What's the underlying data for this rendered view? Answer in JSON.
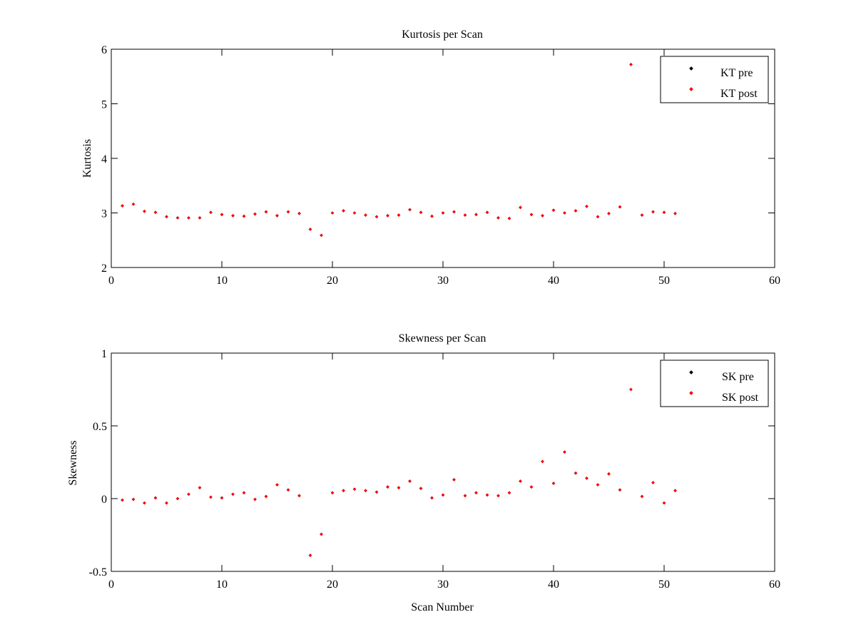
{
  "chart_data": [
    {
      "type": "scatter",
      "title": "Kurtosis per Scan",
      "xlabel": "",
      "ylabel": "Kurtosis",
      "xlim": [
        0,
        60
      ],
      "ylim": [
        2,
        6
      ],
      "xticks": [
        0,
        10,
        20,
        30,
        40,
        50,
        60
      ],
      "yticks": [
        2,
        3,
        4,
        5,
        6
      ],
      "xtick_labels": [
        "0",
        "10",
        "20",
        "30",
        "40",
        "50",
        "60"
      ],
      "ytick_labels": [
        "2",
        "3",
        "4",
        "5",
        "6"
      ],
      "legend_position": "top-right",
      "grid": false,
      "series": [
        {
          "name": "KT pre",
          "color": "#000000",
          "x": [
            1,
            2,
            3,
            4,
            5,
            6,
            7,
            8,
            9,
            10,
            11,
            12,
            13,
            14,
            15,
            16,
            17,
            18,
            19,
            20,
            21,
            22,
            23,
            24,
            25,
            26,
            27,
            28,
            29,
            30,
            31,
            32,
            33,
            34,
            35,
            36,
            37,
            38,
            39,
            40,
            41,
            42,
            43,
            44,
            45,
            46,
            47,
            48,
            49,
            50,
            51
          ],
          "y": [
            3.13,
            3.16,
            3.03,
            3.01,
            2.93,
            2.91,
            2.91,
            2.91,
            3.01,
            2.97,
            2.95,
            2.94,
            2.98,
            3.02,
            2.95,
            3.02,
            2.99,
            2.7,
            2.59,
            3.0,
            3.04,
            3.0,
            2.96,
            2.93,
            2.95,
            2.96,
            3.06,
            3.01,
            2.94,
            3.0,
            3.02,
            2.96,
            2.97,
            3.01,
            2.91,
            2.9,
            3.1,
            2.97,
            2.95,
            3.05,
            3.0,
            3.04,
            3.12,
            2.93,
            2.99,
            3.11,
            5.72,
            2.96,
            3.02,
            3.01,
            2.99
          ]
        },
        {
          "name": "KT post",
          "color": "#ff0000",
          "x": [
            1,
            2,
            3,
            4,
            5,
            6,
            7,
            8,
            9,
            10,
            11,
            12,
            13,
            14,
            15,
            16,
            17,
            18,
            19,
            20,
            21,
            22,
            23,
            24,
            25,
            26,
            27,
            28,
            29,
            30,
            31,
            32,
            33,
            34,
            35,
            36,
            37,
            38,
            39,
            40,
            41,
            42,
            43,
            44,
            45,
            46,
            47,
            48,
            49,
            50,
            51
          ],
          "y": [
            3.13,
            3.16,
            3.03,
            3.01,
            2.93,
            2.91,
            2.91,
            2.91,
            3.01,
            2.97,
            2.95,
            2.94,
            2.98,
            3.02,
            2.95,
            3.02,
            2.99,
            2.7,
            2.59,
            3.0,
            3.04,
            3.0,
            2.96,
            2.93,
            2.95,
            2.96,
            3.06,
            3.01,
            2.94,
            3.0,
            3.02,
            2.96,
            2.97,
            3.01,
            2.91,
            2.9,
            3.1,
            2.97,
            2.95,
            3.05,
            3.0,
            3.04,
            3.12,
            2.93,
            2.99,
            3.11,
            5.72,
            2.96,
            3.02,
            3.01,
            2.99
          ]
        }
      ]
    },
    {
      "type": "scatter",
      "title": "Skewness per Scan",
      "xlabel": "Scan Number",
      "ylabel": "Skewness",
      "xlim": [
        0,
        60
      ],
      "ylim": [
        -0.5,
        1
      ],
      "xticks": [
        0,
        10,
        20,
        30,
        40,
        50,
        60
      ],
      "yticks": [
        -0.5,
        0,
        0.5,
        1
      ],
      "xtick_labels": [
        "0",
        "10",
        "20",
        "30",
        "40",
        "50",
        "60"
      ],
      "ytick_labels": [
        "-0.5",
        "0",
        "0.5",
        "1"
      ],
      "legend_position": "top-right",
      "grid": false,
      "series": [
        {
          "name": "SK pre",
          "color": "#000000",
          "x": [
            1,
            2,
            3,
            4,
            5,
            6,
            7,
            8,
            9,
            10,
            11,
            12,
            13,
            14,
            15,
            16,
            17,
            18,
            19,
            20,
            21,
            22,
            23,
            24,
            25,
            26,
            27,
            28,
            29,
            30,
            31,
            32,
            33,
            34,
            35,
            36,
            37,
            38,
            39,
            40,
            41,
            42,
            43,
            44,
            45,
            46,
            47,
            48,
            49,
            50,
            51
          ],
          "y": [
            -0.01,
            -0.005,
            -0.03,
            0.005,
            -0.03,
            0.0,
            0.03,
            0.075,
            0.01,
            0.005,
            0.03,
            0.04,
            -0.005,
            0.015,
            0.095,
            0.06,
            0.02,
            -0.39,
            -0.245,
            0.04,
            0.055,
            0.065,
            0.055,
            0.045,
            0.08,
            0.075,
            0.12,
            0.07,
            0.005,
            0.025,
            0.13,
            0.02,
            0.04,
            0.025,
            0.02,
            0.04,
            0.12,
            0.08,
            0.255,
            0.105,
            0.32,
            0.175,
            0.14,
            0.095,
            0.17,
            0.06,
            0.75,
            0.015,
            0.11,
            -0.03,
            0.055
          ]
        },
        {
          "name": "SK post",
          "color": "#ff0000",
          "x": [
            1,
            2,
            3,
            4,
            5,
            6,
            7,
            8,
            9,
            10,
            11,
            12,
            13,
            14,
            15,
            16,
            17,
            18,
            19,
            20,
            21,
            22,
            23,
            24,
            25,
            26,
            27,
            28,
            29,
            30,
            31,
            32,
            33,
            34,
            35,
            36,
            37,
            38,
            39,
            40,
            41,
            42,
            43,
            44,
            45,
            46,
            47,
            48,
            49,
            50,
            51
          ],
          "y": [
            -0.01,
            -0.005,
            -0.03,
            0.005,
            -0.03,
            0.0,
            0.03,
            0.075,
            0.01,
            0.005,
            0.03,
            0.04,
            -0.005,
            0.015,
            0.095,
            0.06,
            0.02,
            -0.39,
            -0.245,
            0.04,
            0.055,
            0.065,
            0.055,
            0.045,
            0.08,
            0.075,
            0.12,
            0.07,
            0.005,
            0.025,
            0.13,
            0.02,
            0.04,
            0.025,
            0.02,
            0.04,
            0.12,
            0.08,
            0.255,
            0.105,
            0.32,
            0.175,
            0.14,
            0.095,
            0.17,
            0.06,
            0.75,
            0.015,
            0.11,
            -0.03,
            0.055
          ]
        }
      ]
    }
  ]
}
